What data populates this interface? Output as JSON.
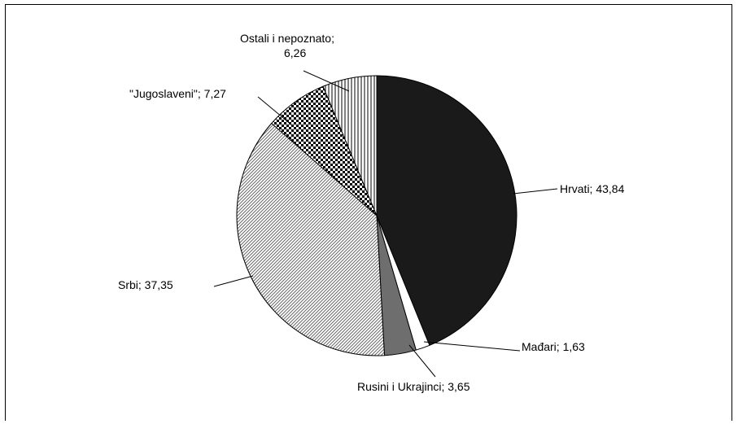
{
  "chart_data": {
    "type": "pie",
    "title": "",
    "slices": [
      {
        "name": "Hrvati",
        "value": 43.84,
        "label_lines": [
          "Hrvati; 43,84"
        ],
        "pattern": "solid-dark",
        "color": "#1a1a1a"
      },
      {
        "name": "Mađari",
        "value": 1.63,
        "label_lines": [
          "Mađari; 1,63"
        ],
        "pattern": "white",
        "color": "#ffffff"
      },
      {
        "name": "Rusini i Ukrajinci",
        "value": 3.65,
        "label_lines": [
          "Rusini i Ukrajinci; 3,65"
        ],
        "pattern": "solid-gray",
        "color": "#6e6e6e"
      },
      {
        "name": "Srbi",
        "value": 37.35,
        "label_lines": [
          "Srbi; 37,35"
        ],
        "pattern": "diagonal-hatch",
        "color": "#888888"
      },
      {
        "name": "\"Jugoslaveni\"",
        "value": 7.27,
        "label_lines": [
          "\"Jugoslaveni\"; 7,27"
        ],
        "pattern": "checker",
        "color": "#000000"
      },
      {
        "name": "Ostali i nepoznato",
        "value": 6.26,
        "label_lines": [
          "Ostali i nepoznato;",
          "6,26"
        ],
        "pattern": "vertical-lines",
        "color": "#000000"
      }
    ],
    "start_angle": "12 o'clock",
    "direction": "clockwise",
    "legend": "none (leader-line labels)"
  }
}
